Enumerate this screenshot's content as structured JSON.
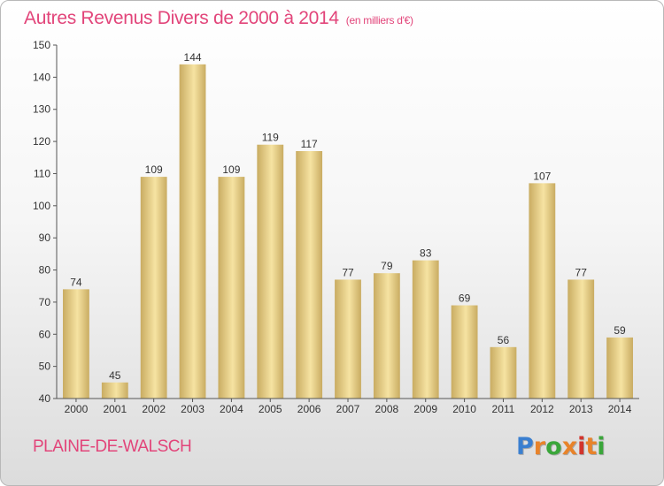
{
  "title": "Autres Revenus Divers de 2000 à 2014",
  "title_unit": "(en milliers d'€)",
  "commune": "PLAINE-DE-WALSCH",
  "logo": {
    "letters": [
      "P",
      "r",
      "o",
      "x",
      "i",
      "t",
      "i"
    ],
    "colors": [
      "#3a7fd0",
      "#e8832a",
      "#3aa63a",
      "#e8832a",
      "#d2342c",
      "#e8832a",
      "#3aa63a"
    ]
  },
  "colors": {
    "title": "#e2457a",
    "bar_light": "#f6e3a2",
    "bar_dark": "#c9ac62",
    "axis": "#555555"
  },
  "chart_data": {
    "type": "bar",
    "categories": [
      "2000",
      "2001",
      "2002",
      "2003",
      "2004",
      "2005",
      "2006",
      "2007",
      "2008",
      "2009",
      "2010",
      "2011",
      "2012",
      "2013",
      "2014"
    ],
    "values": [
      74,
      45,
      109,
      144,
      109,
      119,
      117,
      77,
      79,
      83,
      69,
      56,
      107,
      77,
      59
    ],
    "ylim": [
      40,
      150
    ],
    "yticks": [
      40,
      50,
      60,
      70,
      80,
      90,
      100,
      110,
      120,
      130,
      140,
      150
    ],
    "grid": false
  }
}
